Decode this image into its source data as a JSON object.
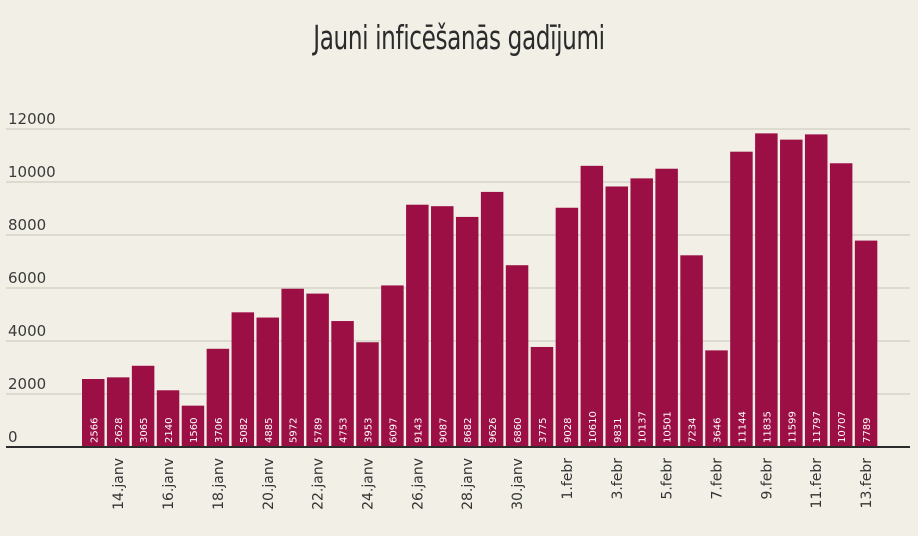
{
  "chart_data": {
    "type": "bar",
    "title": "Jauni inficēšanās gadījumi",
    "xlabel": "",
    "ylabel": "",
    "ylim": [
      0,
      12000
    ],
    "yticks": [
      "0",
      "2000",
      "4000",
      "6000",
      "8000",
      "10000",
      "12000"
    ],
    "grid": true,
    "bar_color": "#9c0f45",
    "xtick_labels": [
      "14.janv",
      "16.janv",
      "18.janv",
      "20.janv",
      "22.janv",
      "24.janv",
      "26.janv",
      "28.janv",
      "30.janv",
      "1.febr",
      "3.febr",
      "5.febr",
      "7.febr",
      "9.febr",
      "11.febr",
      "13.febr"
    ],
    "values": [
      2566,
      2628,
      3065,
      2140,
      1560,
      3706,
      5082,
      4885,
      5972,
      5789,
      4753,
      3953,
      6097,
      9143,
      9087,
      8682,
      9626,
      6860,
      3775,
      9028,
      10610,
      9831,
      10137,
      10501,
      7234,
      3646,
      11144,
      11835,
      11599,
      11797,
      10707,
      7789
    ]
  }
}
